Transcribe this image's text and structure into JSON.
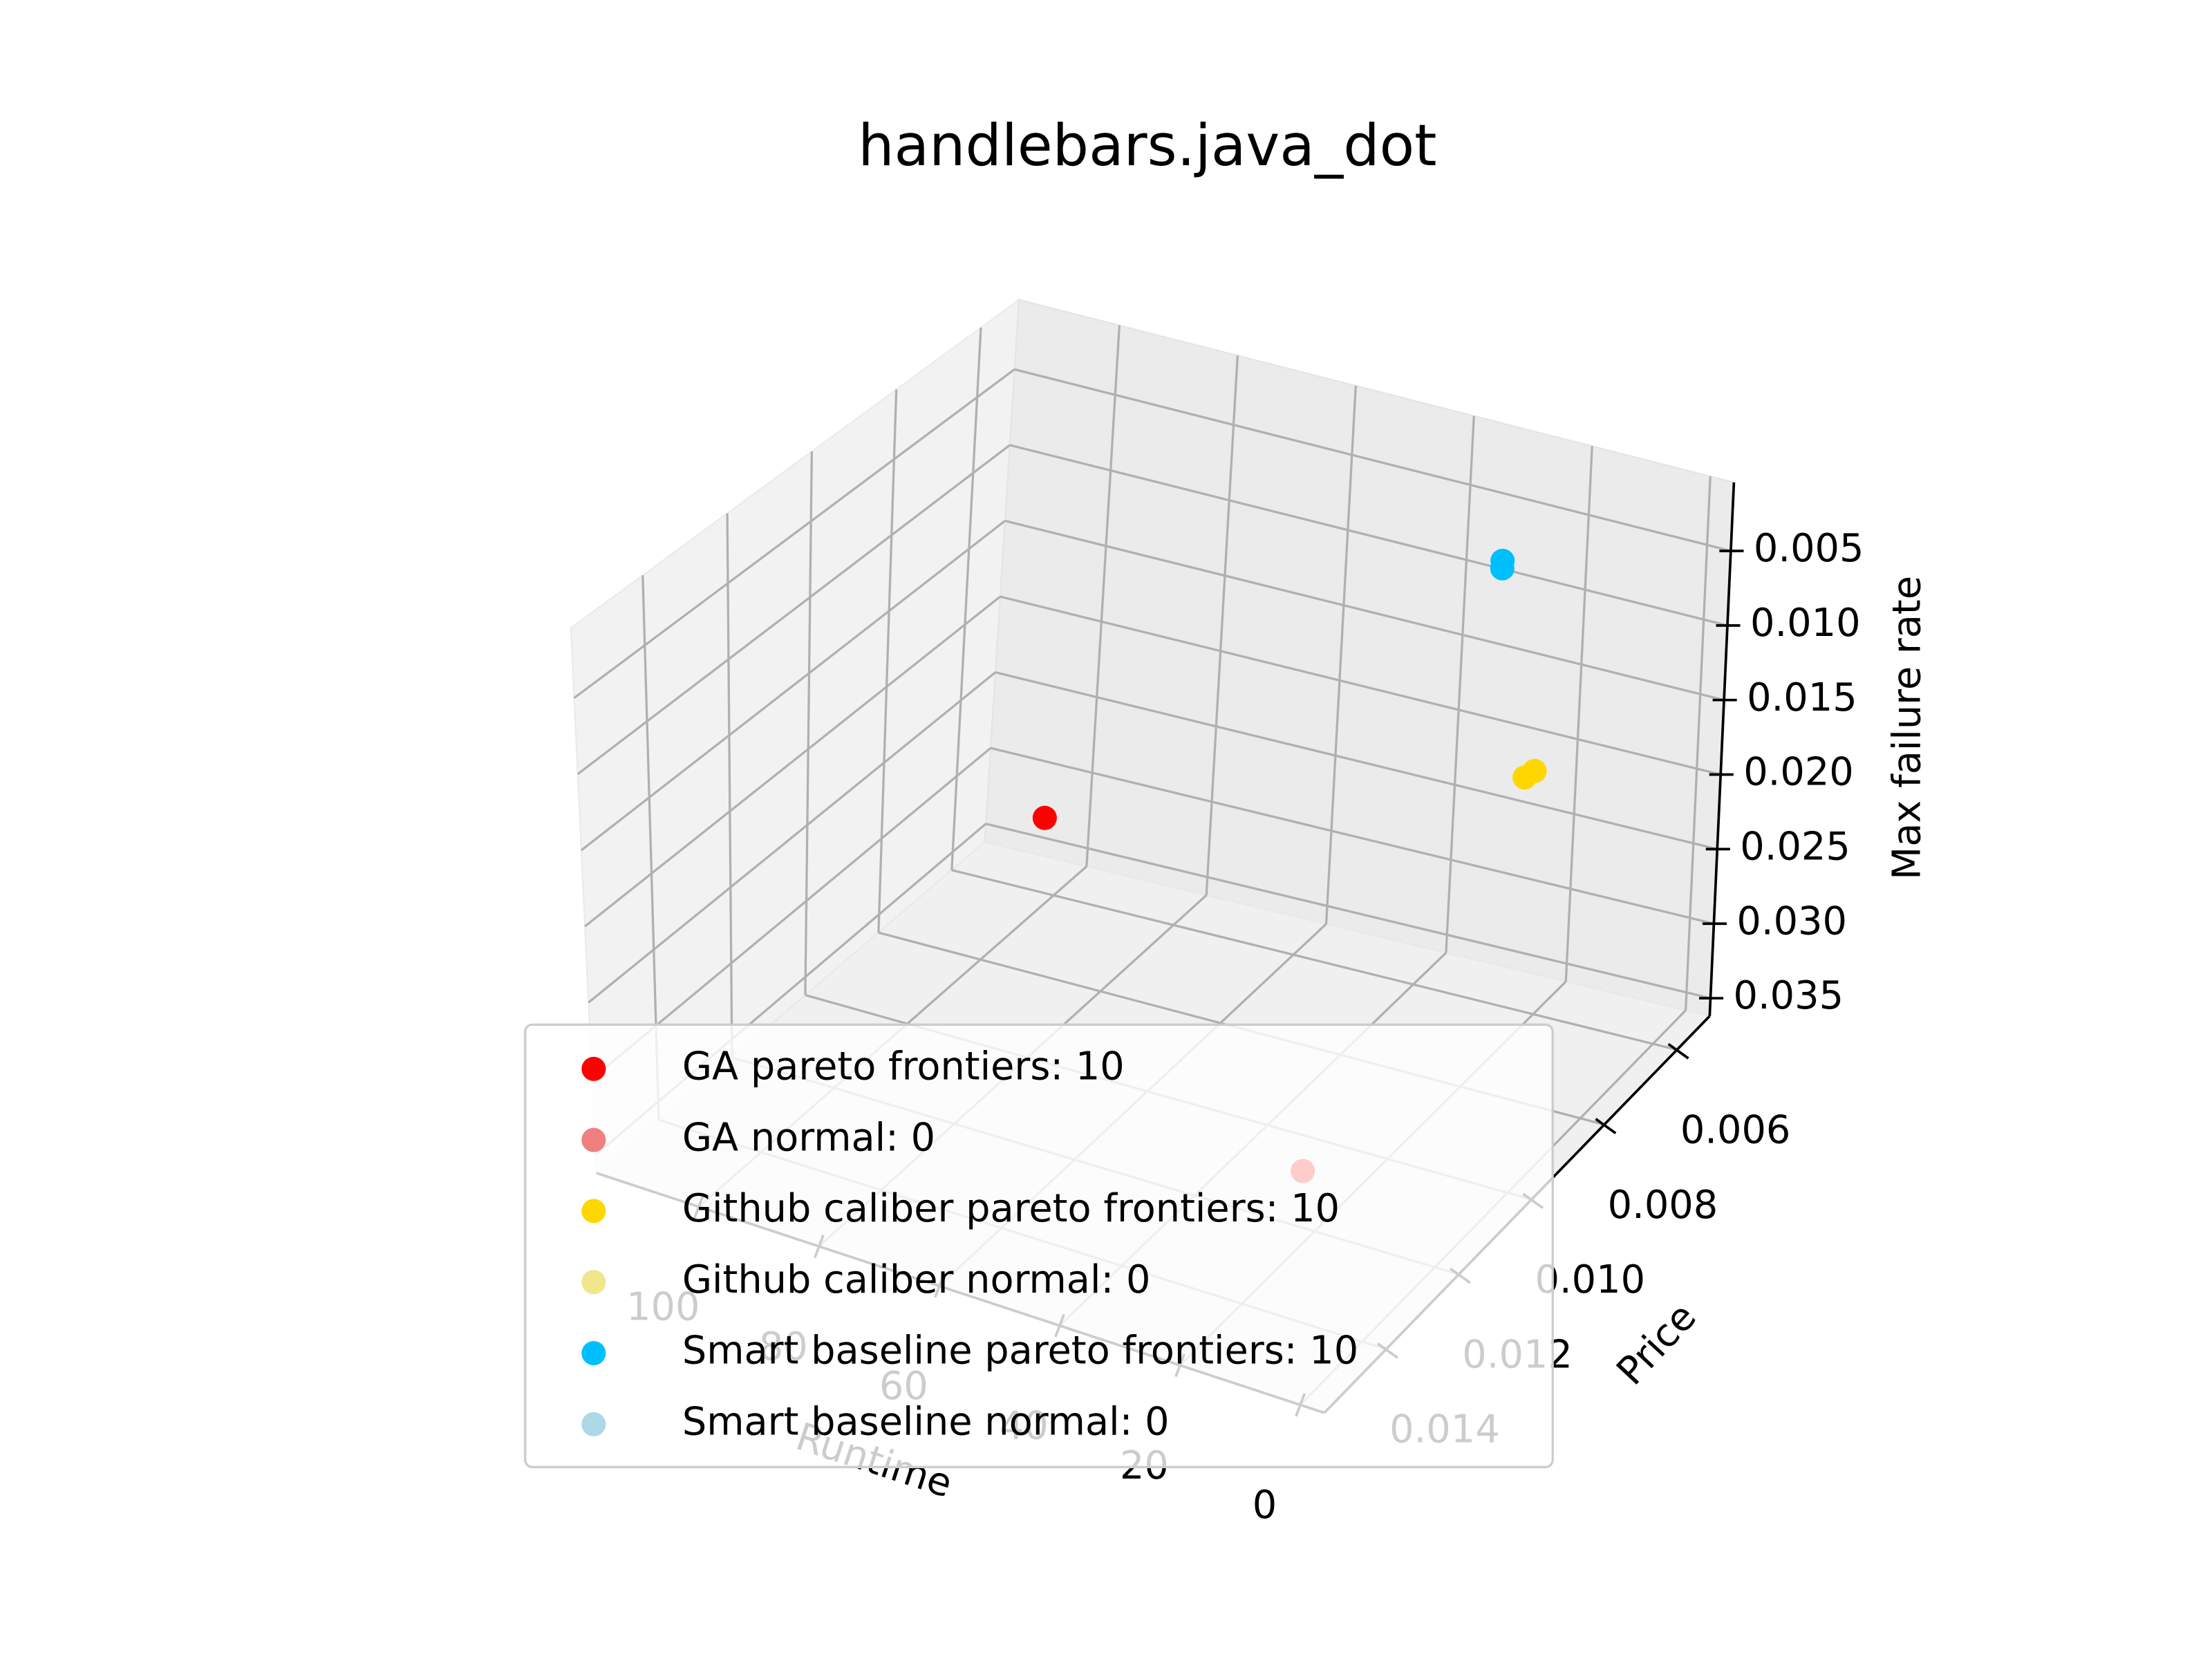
{
  "chart_data": {
    "type": "scatter3d",
    "title": "handlebars.java_dot",
    "xlabel": "Runtime",
    "ylabel": "Price",
    "zlabel": "Max failure rate",
    "xlim": [
      -4,
      117
    ],
    "ylim": [
      0.0051,
      0.0157
    ],
    "zlim": [
      0.0004,
      0.0362
    ],
    "z_inverted": true,
    "xticks": [
      0,
      20,
      40,
      60,
      80,
      100
    ],
    "yticks": [
      0.006,
      0.008,
      {
        "value": 0.01,
        "label": "0.010"
      },
      0.012,
      0.014
    ],
    "zticks": [
      0.005,
      {
        "value": 0.01,
        "label": "0.010"
      },
      0.015,
      {
        "value": 0.02,
        "label": "0.020"
      },
      0.025,
      {
        "value": 0.03,
        "label": "0.030"
      },
      0.035
    ],
    "grid": true,
    "legend": "lower center",
    "series": [
      {
        "name": "GA pareto frontiers: 10",
        "color": "#ff0000",
        "x": [
          87,
          25
        ],
        "y": [
          0.0085,
          0.0115
        ],
        "z": [
          0.0244,
          0.034
        ]
      },
      {
        "name": "GA normal: 0",
        "color": "#f08080",
        "x": [],
        "y": [],
        "z": []
      },
      {
        "name": "Github caliber pareto frontiers: 10",
        "color": "#ffd700",
        "x": [
          14,
          15
        ],
        "y": [
          0.0072,
          0.0073
        ],
        "z": [
          0.0165,
          0.0168
        ]
      },
      {
        "name": "Github caliber normal: 0",
        "color": "#f0e68c",
        "x": [],
        "y": [],
        "z": []
      },
      {
        "name": "Smart baseline pareto frontiers: 10",
        "color": "#00bfff",
        "x": [
          25,
          25
        ],
        "y": [
          0.0065,
          0.0065
        ],
        "z": [
          0.0053,
          0.0058
        ]
      },
      {
        "name": "Smart baseline normal: 0",
        "color": "#add8e6",
        "x": [],
        "y": [],
        "z": []
      }
    ]
  }
}
